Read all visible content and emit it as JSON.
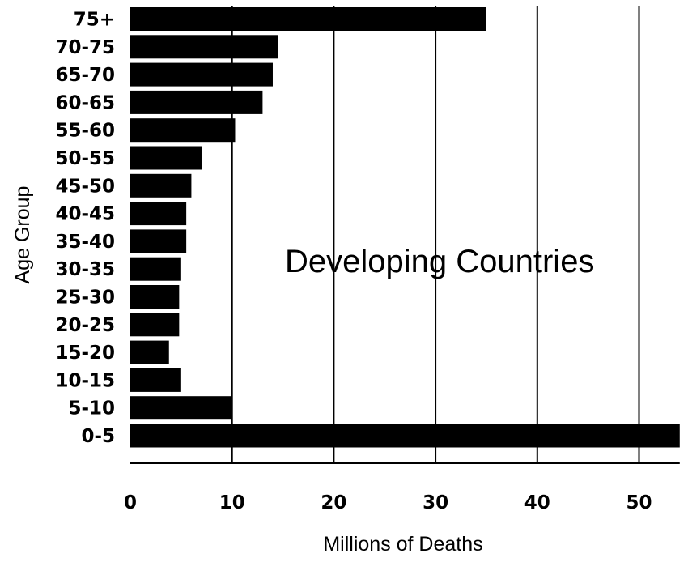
{
  "chart_data": {
    "type": "bar",
    "orientation": "horizontal",
    "categories": [
      "75+",
      "70-75",
      "65-70",
      "60-65",
      "55-60",
      "50-55",
      "45-50",
      "40-45",
      "35-40",
      "30-35",
      "25-30",
      "20-25",
      "15-20",
      "10-15",
      "5-10",
      "0-5"
    ],
    "values": [
      35,
      14.5,
      14,
      13,
      10.3,
      7,
      6,
      5.5,
      5.5,
      5,
      4.8,
      4.8,
      3.8,
      5,
      10,
      54
    ],
    "xlabel": "Millions of Deaths",
    "ylabel": "Age Group",
    "annotation": "Developing Countries",
    "xlim": [
      0,
      54
    ],
    "xticks": [
      0,
      10,
      20,
      30,
      40,
      50
    ],
    "grid": "vertical lines",
    "legend": "none",
    "colors": {
      "bar": "#000000",
      "grid": "#000000",
      "background": "#ffffff"
    }
  }
}
